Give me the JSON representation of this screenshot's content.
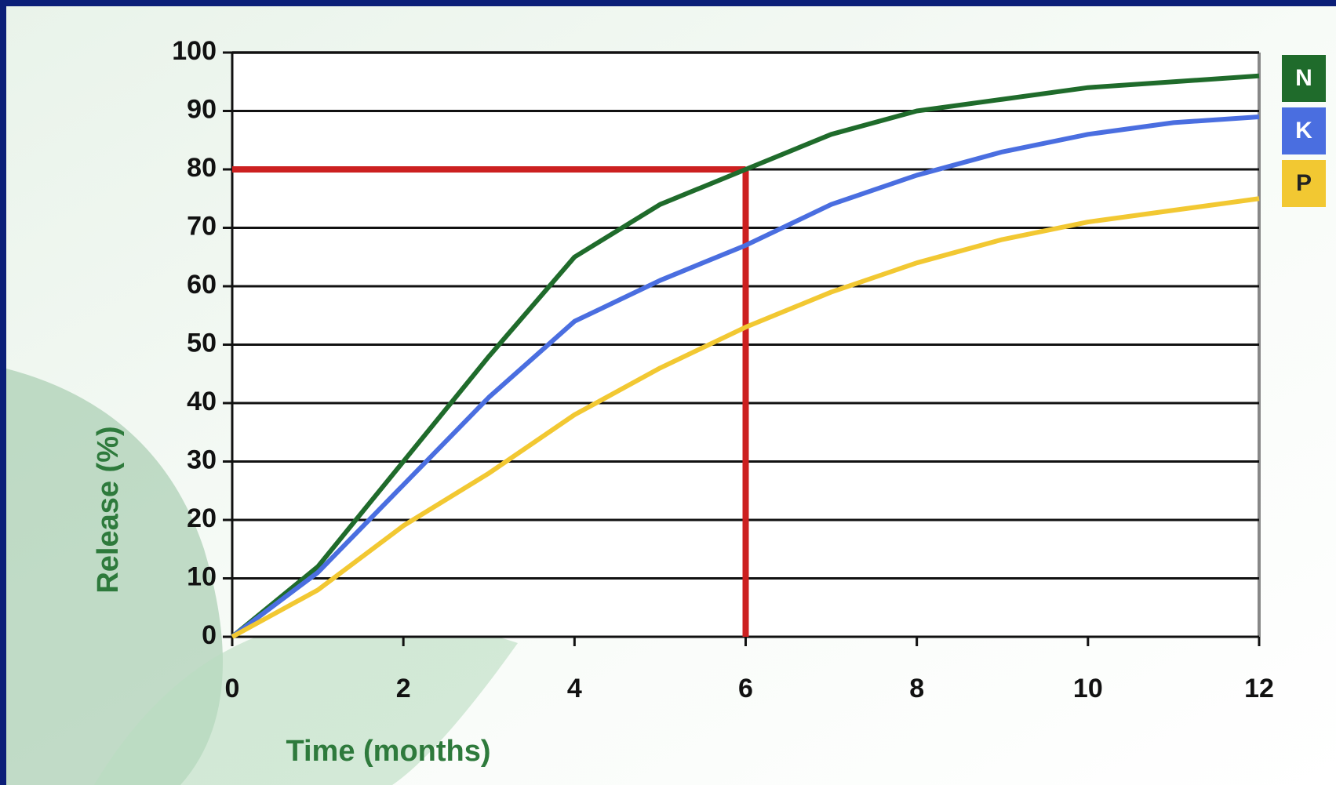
{
  "chart_data": {
    "type": "line",
    "x_label": "Time (months)",
    "y_label": "Release (%)",
    "x": [
      0,
      1,
      2,
      3,
      4,
      5,
      6,
      7,
      8,
      9,
      10,
      11,
      12
    ],
    "series": [
      {
        "name": "N",
        "color": "#1f6b2b",
        "values": [
          0,
          12,
          30,
          48,
          65,
          74,
          80,
          86,
          90,
          92,
          94,
          95,
          96
        ]
      },
      {
        "name": "K",
        "color": "#4a6ee0",
        "values": [
          0,
          11,
          26,
          41,
          54,
          61,
          67,
          74,
          79,
          83,
          86,
          88,
          89
        ]
      },
      {
        "name": "P",
        "color": "#f2c832",
        "values": [
          0,
          8,
          19,
          28,
          38,
          46,
          53,
          59,
          64,
          68,
          71,
          73,
          75
        ]
      }
    ],
    "xlim": [
      0,
      12
    ],
    "xticks": [
      0,
      2,
      4,
      6,
      8,
      10,
      12
    ],
    "ylim": [
      0,
      100
    ],
    "yticks": [
      0,
      10,
      20,
      30,
      40,
      50,
      60,
      70,
      80,
      90,
      100
    ],
    "grid": true,
    "reference_lines": {
      "x": 6,
      "y": 80,
      "color": "#cc2020"
    }
  }
}
